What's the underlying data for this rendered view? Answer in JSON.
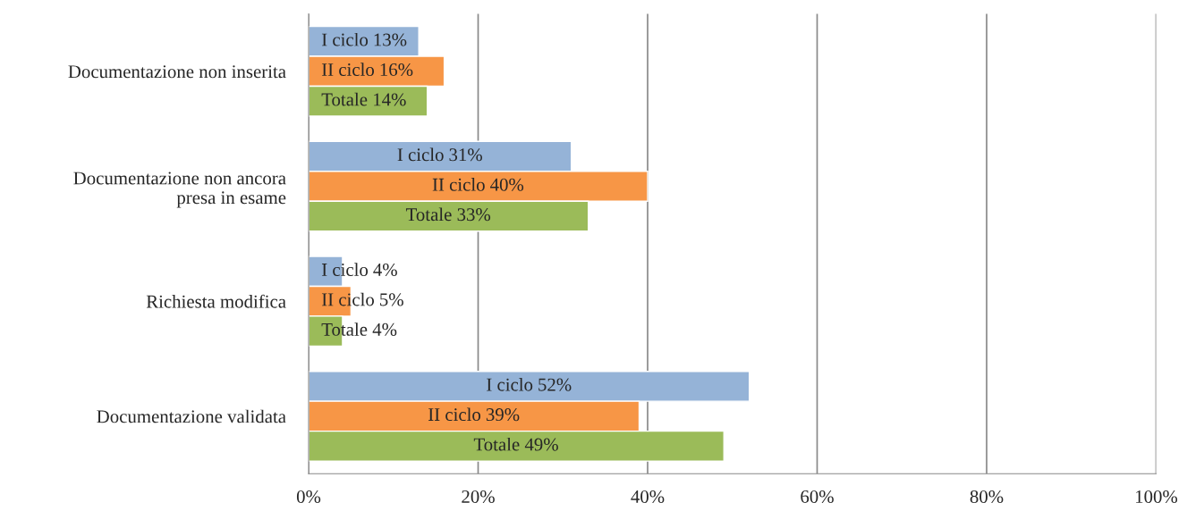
{
  "chart_data": {
    "type": "bar",
    "orientation": "horizontal",
    "categories": [
      "Documentazione non inserita",
      "Documentazione non ancora\npresa in esame",
      "Richiesta modifica",
      "Documentazione validata"
    ],
    "series": [
      {
        "name": "I ciclo",
        "color": "#95b3d7",
        "values": [
          13,
          31,
          4,
          52
        ],
        "value_labels": [
          "13%",
          "31%",
          "4%",
          "52%"
        ]
      },
      {
        "name": "II ciclo",
        "color": "#f79646",
        "values": [
          16,
          40,
          5,
          39
        ],
        "value_labels": [
          "16%",
          "40%",
          "5%",
          "39%"
        ]
      },
      {
        "name": "Totale",
        "color": "#9bbb59",
        "values": [
          14,
          33,
          4,
          49
        ],
        "value_labels": [
          "14%",
          "33%",
          "4%",
          "49%"
        ]
      }
    ],
    "xlim": [
      0,
      100
    ],
    "xticks": [
      {
        "value": 0,
        "label": "0%"
      },
      {
        "value": 20,
        "label": "20%"
      },
      {
        "value": 40,
        "label": "40%"
      },
      {
        "value": 60,
        "label": "60%"
      },
      {
        "value": 80,
        "label": "80%"
      },
      {
        "value": 100,
        "label": "100%"
      }
    ],
    "grid": "x"
  }
}
